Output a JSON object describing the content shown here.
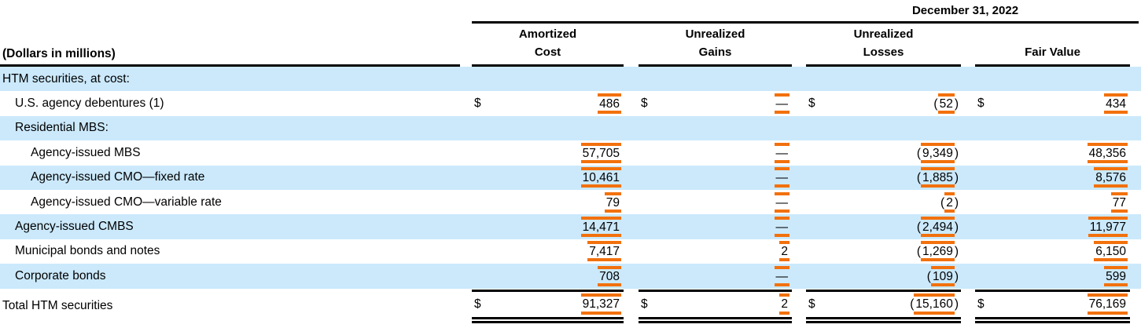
{
  "meta": {
    "currency_symbol": "$",
    "table_kind": "table"
  },
  "colors": {
    "highlight_orange": "#F2710D",
    "row_shade_blue": "#CBE9FB",
    "rule_black": "#000000"
  },
  "header": {
    "period": "December 31, 2022",
    "dollars_label": "(Dollars in millions)",
    "columns": [
      {
        "line1": "Amortized",
        "line2": "Cost"
      },
      {
        "line1": "Unrealized",
        "line2": "Gains"
      },
      {
        "line1": "Unrealized",
        "line2": "Losses"
      },
      {
        "line1": "",
        "line2": "Fair Value"
      }
    ]
  },
  "body_rows": [
    {
      "label": "HTM securities, at cost:",
      "indent": 0,
      "shaded": true,
      "dollar": false,
      "values": null
    },
    {
      "label": "U.S. agency debentures (1)",
      "indent": 1,
      "shaded": false,
      "dollar": true,
      "values": [
        "486",
        "—",
        "(52)",
        "434"
      ]
    },
    {
      "label": "Residential MBS:",
      "indent": 1,
      "shaded": true,
      "dollar": false,
      "values": null
    },
    {
      "label": "Agency-issued MBS",
      "indent": 2,
      "shaded": false,
      "dollar": false,
      "values": [
        "57,705",
        "—",
        "(9,349)",
        "48,356"
      ]
    },
    {
      "label": "Agency-issued CMO—fixed rate",
      "indent": 2,
      "shaded": true,
      "dollar": false,
      "values": [
        "10,461",
        "—",
        "(1,885)",
        "8,576"
      ]
    },
    {
      "label": "Agency-issued CMO—variable rate",
      "indent": 2,
      "shaded": false,
      "dollar": false,
      "values": [
        "79",
        "—",
        "(2)",
        "77"
      ]
    },
    {
      "label": "Agency-issued CMBS",
      "indent": 1,
      "shaded": true,
      "dollar": false,
      "values": [
        "14,471",
        "—",
        "(2,494)",
        "11,977"
      ]
    },
    {
      "label": "Municipal bonds and notes",
      "indent": 1,
      "shaded": false,
      "dollar": false,
      "values": [
        "7,417",
        "2",
        "(1,269)",
        "6,150"
      ]
    },
    {
      "label": "Corporate bonds",
      "indent": 1,
      "shaded": true,
      "dollar": false,
      "values": [
        "708",
        "—",
        "(109)",
        "599"
      ]
    }
  ],
  "total": {
    "label": "Total HTM securities",
    "dollar": true,
    "values": [
      "91,327",
      "2",
      "(15,160)",
      "76,169"
    ]
  }
}
